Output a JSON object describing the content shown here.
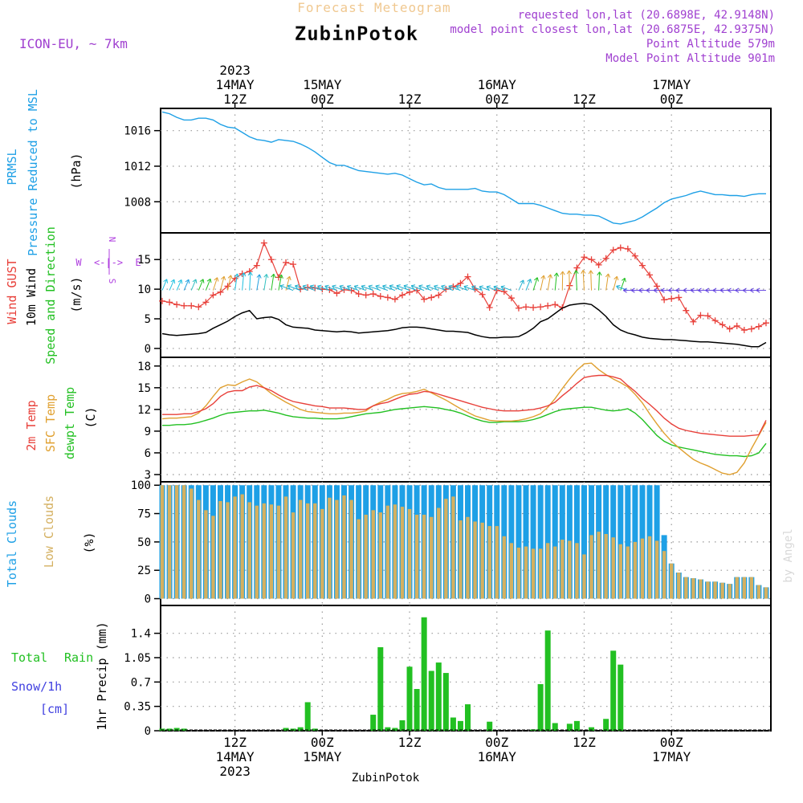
{
  "header": {
    "title": "Forecast Meteogram",
    "location": "ZubinPotok",
    "model": "ICON-EU, ~ 7km",
    "requested": "requested lon,lat (20.6898E, 42.9148N)",
    "closest": "model point closest lon,lat (20.6875E, 42.9375N)",
    "point_alt": "Point Altitude 579m",
    "model_alt": "Model Point Altitude 901m",
    "footer_location": "ZubinPotok",
    "credit": "by Angel"
  },
  "colors": {
    "pressure": "#1ea0e6",
    "gust": "#e8403a",
    "wind": "#000000",
    "arrows": "#22c022",
    "t2m": "#e8403a",
    "tsfc": "#e0a030",
    "dewpt": "#22c022",
    "total_clouds": "#1ea0e6",
    "low_clouds": "#d4b060",
    "rain": "#22c022",
    "snow": "#4040e0",
    "compass": "#b040e0",
    "header_title": "#f0c890",
    "header_info": "#a040d0"
  },
  "chart_data": [
    {
      "type": "line",
      "name": "pressure",
      "title": "PRMSL Pressure Reduced to MSL",
      "ylabel_lines": [
        "PRMSL",
        "Pressure Reduced to MSL"
      ],
      "unit": "(hPa)",
      "hours": [
        0,
        24
      ],
      "ylim": [
        1004.5,
        1018.5
      ],
      "yticks": [
        1008,
        1012,
        1016
      ],
      "series": [
        {
          "name": "PRMSL",
          "values": [
            1018.1,
            1017.9,
            1017.5,
            1017.2,
            1017.2,
            1017.4,
            1017.4,
            1017.2,
            1016.7,
            1016.4,
            1016.3,
            1015.8,
            1015.3,
            1015.0,
            1014.9,
            1014.7,
            1015.0,
            1014.9,
            1014.8,
            1014.5,
            1014.1,
            1013.6,
            1013.0,
            1012.4,
            1012.1,
            1012.1,
            1011.8,
            1011.5,
            1011.4,
            1011.3,
            1011.2,
            1011.1,
            1011.2,
            1011.0,
            1010.6,
            1010.2,
            1009.9,
            1010.0,
            1009.6,
            1009.4,
            1009.4,
            1009.4,
            1009.4,
            1009.5,
            1009.2,
            1009.1,
            1009.1,
            1008.8,
            1008.3,
            1007.8,
            1007.8,
            1007.8,
            1007.6,
            1007.3,
            1007.0,
            1006.7,
            1006.6,
            1006.6,
            1006.5,
            1006.5,
            1006.4,
            1006.0,
            1005.6,
            1005.5,
            1005.7,
            1005.9,
            1006.3,
            1006.8,
            1007.3,
            1007.9,
            1008.3,
            1008.5,
            1008.7,
            1009.0,
            1009.2,
            1009.0,
            1008.8,
            1008.8,
            1008.7,
            1008.7,
            1008.6,
            1008.8,
            1008.9,
            1008.9
          ]
        }
      ]
    },
    {
      "type": "line",
      "name": "wind",
      "ylabel_lines": [
        "Wind GUST",
        "10m Wind",
        "Speed and Direction"
      ],
      "unit": "(m/s)",
      "ylim": [
        -1.5,
        19.5
      ],
      "yticks": [
        0,
        5,
        10,
        15
      ],
      "compass": {
        "n": "N",
        "s": "S",
        "e": "E",
        "w": "W",
        "arrow": "<-|->"
      },
      "series": [
        {
          "name": "Wind GUST",
          "values": [
            8.0,
            7.8,
            7.4,
            7.2,
            7.2,
            7.0,
            7.8,
            9.0,
            9.5,
            10.5,
            11.8,
            12.6,
            13.0,
            14.0,
            17.8,
            15.0,
            12.0,
            14.5,
            14.2,
            10.0,
            10.3,
            10.2,
            10.0,
            9.9,
            9.3,
            9.9,
            9.8,
            9.2,
            9.0,
            9.2,
            8.8,
            8.6,
            8.3,
            9.0,
            9.5,
            9.8,
            8.3,
            8.6,
            9.0,
            10.0,
            10.4,
            11.0,
            12.1,
            10.0,
            9.1,
            6.9,
            9.8,
            9.6,
            8.5,
            6.8,
            7.0,
            6.9,
            7.0,
            7.2,
            7.4,
            6.9,
            10.6,
            13.6,
            15.4,
            15.0,
            14.1,
            15.2,
            16.6,
            17.0,
            16.8,
            15.6,
            14.0,
            12.4,
            10.5,
            8.2,
            8.4,
            8.6,
            6.4,
            4.5,
            5.6,
            5.5,
            4.7,
            4.0,
            3.3,
            3.8,
            3.1,
            3.3,
            3.7,
            4.3
          ]
        },
        {
          "name": "10m Wind",
          "values": [
            2.5,
            2.3,
            2.2,
            2.3,
            2.4,
            2.5,
            2.7,
            3.4,
            4.0,
            4.6,
            5.4,
            6.0,
            6.4,
            5.0,
            5.2,
            5.3,
            4.9,
            4.0,
            3.6,
            3.5,
            3.4,
            3.1,
            3.0,
            2.9,
            2.8,
            2.9,
            2.8,
            2.6,
            2.7,
            2.8,
            2.9,
            3.0,
            3.2,
            3.5,
            3.6,
            3.6,
            3.5,
            3.3,
            3.1,
            2.9,
            2.9,
            2.8,
            2.7,
            2.3,
            2.0,
            1.8,
            1.8,
            1.9,
            1.9,
            2.0,
            2.6,
            3.4,
            4.5,
            5.0,
            5.9,
            6.8,
            7.3,
            7.5,
            7.6,
            7.4,
            6.5,
            5.4,
            4.0,
            3.1,
            2.6,
            2.3,
            1.9,
            1.7,
            1.6,
            1.5,
            1.5,
            1.4,
            1.3,
            1.2,
            1.1,
            1.1,
            1.0,
            0.9,
            0.8,
            0.7,
            0.5,
            0.3,
            0.3,
            1.0
          ]
        }
      ]
    },
    {
      "type": "line",
      "name": "temperature",
      "ylabel_lines": [
        "2m Temp",
        "SFC Temp",
        "dewpt Temp"
      ],
      "unit": "(C)",
      "ylim": [
        2,
        19.2
      ],
      "yticks": [
        3,
        6,
        9,
        12,
        15,
        18
      ],
      "series": [
        {
          "name": "2m Temp",
          "values": [
            11.3,
            11.3,
            11.3,
            11.4,
            11.4,
            11.7,
            12.1,
            12.8,
            13.8,
            14.4,
            14.6,
            14.6,
            15.1,
            15.3,
            15.0,
            14.6,
            14.0,
            13.5,
            13.1,
            12.9,
            12.7,
            12.5,
            12.4,
            12.2,
            12.2,
            12.2,
            12.1,
            12.0,
            12.0,
            12.5,
            12.8,
            13.0,
            13.4,
            13.8,
            14.1,
            14.2,
            14.5,
            14.4,
            14.1,
            13.8,
            13.5,
            13.2,
            12.9,
            12.6,
            12.3,
            12.1,
            11.9,
            11.8,
            11.8,
            11.8,
            11.9,
            12.0,
            12.2,
            12.5,
            13.0,
            13.9,
            14.7,
            15.6,
            16.4,
            16.6,
            16.7,
            16.7,
            16.5,
            16.2,
            15.3,
            14.5,
            13.5,
            12.7,
            11.8,
            10.8,
            10.0,
            9.4,
            9.1,
            8.9,
            8.7,
            8.6,
            8.5,
            8.4,
            8.3,
            8.3,
            8.3,
            8.4,
            8.5,
            10.5
          ]
        },
        {
          "name": "SFC Temp",
          "values": [
            10.7,
            10.8,
            10.8,
            10.9,
            11.0,
            11.5,
            12.5,
            13.8,
            15.0,
            15.4,
            15.3,
            15.8,
            16.2,
            15.8,
            15.0,
            14.2,
            13.6,
            13.0,
            12.5,
            12.0,
            11.7,
            11.6,
            11.5,
            11.4,
            11.4,
            11.5,
            11.5,
            11.6,
            11.8,
            12.5,
            13.0,
            13.4,
            13.9,
            14.2,
            14.3,
            14.5,
            14.8,
            14.3,
            13.8,
            13.3,
            12.7,
            12.1,
            11.6,
            11.1,
            10.8,
            10.5,
            10.4,
            10.4,
            10.4,
            10.5,
            10.7,
            11.0,
            11.4,
            12.3,
            13.5,
            14.9,
            16.2,
            17.4,
            18.3,
            18.4,
            17.5,
            16.8,
            16.2,
            15.7,
            15.1,
            14.1,
            12.9,
            11.4,
            10.0,
            8.7,
            7.6,
            6.7,
            5.9,
            5.1,
            4.6,
            4.2,
            3.7,
            3.2,
            3.0,
            3.3,
            4.6,
            6.6,
            8.4,
            10.2
          ]
        },
        {
          "name": "dewpt Temp",
          "values": [
            9.8,
            9.8,
            9.9,
            9.9,
            10.0,
            10.2,
            10.5,
            10.8,
            11.2,
            11.5,
            11.6,
            11.7,
            11.8,
            11.8,
            11.9,
            11.7,
            11.5,
            11.2,
            11.0,
            10.9,
            10.8,
            10.8,
            10.7,
            10.7,
            10.7,
            10.8,
            11.0,
            11.2,
            11.4,
            11.5,
            11.6,
            11.8,
            12.0,
            12.1,
            12.2,
            12.3,
            12.4,
            12.3,
            12.2,
            12.0,
            11.8,
            11.5,
            11.1,
            10.7,
            10.4,
            10.2,
            10.2,
            10.3,
            10.3,
            10.3,
            10.4,
            10.6,
            10.9,
            11.3,
            11.7,
            12.0,
            12.1,
            12.2,
            12.3,
            12.3,
            12.1,
            11.9,
            11.8,
            11.9,
            12.1,
            11.5,
            10.6,
            9.5,
            8.4,
            7.6,
            7.1,
            6.8,
            6.6,
            6.4,
            6.2,
            6.0,
            5.8,
            5.7,
            5.6,
            5.6,
            5.5,
            5.6,
            6.0,
            7.3
          ]
        }
      ]
    },
    {
      "type": "bar",
      "name": "clouds",
      "ylabel_lines": [
        "Total Clouds",
        "Low Clouds"
      ],
      "unit": "(%)",
      "ylim": [
        -6,
        103
      ],
      "yticks": [
        0,
        25,
        50,
        75,
        100
      ],
      "series": [
        {
          "name": "Total Clouds",
          "values": [
            100,
            100,
            100,
            100,
            100,
            100,
            100,
            100,
            100,
            100,
            100,
            100,
            100,
            100,
            100,
            100,
            100,
            100,
            100,
            100,
            100,
            100,
            100,
            100,
            100,
            100,
            100,
            100,
            100,
            100,
            100,
            100,
            100,
            100,
            100,
            100,
            100,
            100,
            100,
            100,
            100,
            100,
            100,
            100,
            100,
            100,
            100,
            100,
            100,
            100,
            100,
            100,
            100,
            100,
            100,
            100,
            100,
            100,
            100,
            100,
            100,
            100,
            100,
            100,
            100,
            100,
            100,
            100,
            100,
            56,
            31,
            23,
            19,
            18,
            17,
            15,
            15,
            14,
            13,
            19,
            19,
            19,
            12,
            10
          ]
        },
        {
          "name": "Low Clouds",
          "values": [
            100,
            100,
            100,
            100,
            97,
            87,
            78,
            73,
            86,
            85,
            90,
            92,
            85,
            82,
            84,
            83,
            82,
            90,
            76,
            87,
            84,
            84,
            79,
            89,
            87,
            91,
            87,
            70,
            74,
            78,
            76,
            82,
            83,
            81,
            79,
            74,
            74,
            72,
            80,
            88,
            90,
            69,
            72,
            68,
            67,
            64,
            64,
            55,
            49,
            45,
            46,
            44,
            44,
            49,
            46,
            52,
            51,
            49,
            39,
            56,
            59,
            57,
            54,
            48,
            46,
            50,
            53,
            55,
            51,
            42,
            31,
            23,
            19,
            18,
            17,
            15,
            15,
            14,
            13,
            19,
            19,
            19,
            12,
            10
          ]
        }
      ]
    },
    {
      "type": "bar",
      "name": "precip",
      "ylabel_lines": [
        "Total",
        "Rain",
        "Snow/1h",
        "[cm]"
      ],
      "ylabel_text": "1hr Precip (mm)",
      "ylim": [
        0,
        1.8
      ],
      "yticks": [
        0,
        0.35,
        0.7,
        1.05,
        1.4
      ],
      "yticklabels": [
        "0",
        "0.35",
        "0.7",
        "1.05",
        "1.4"
      ],
      "series": [
        {
          "name": "Total Rain",
          "values": [
            0.03,
            0.03,
            0.04,
            0.03,
            0,
            0,
            0,
            0,
            0,
            0,
            0,
            0,
            0,
            0,
            0,
            0,
            0,
            0.04,
            0.03,
            0.05,
            0.41,
            0.03,
            0,
            0,
            0,
            0,
            0,
            0,
            0,
            0.23,
            1.2,
            0.05,
            0.04,
            0.15,
            0.92,
            0.6,
            1.63,
            0.86,
            0.98,
            0.83,
            0.19,
            0.14,
            0.38,
            0,
            0,
            0.13,
            0,
            0,
            0,
            0,
            0,
            0.02,
            0.67,
            1.44,
            0.11,
            0,
            0.1,
            0.14,
            0,
            0.05,
            0,
            0.17,
            1.15,
            0.95,
            0,
            0,
            0,
            0,
            0,
            0,
            0,
            0,
            0,
            0,
            0,
            0,
            0,
            0,
            0,
            0,
            0,
            0,
            0,
            0
          ]
        }
      ]
    }
  ],
  "time_axis": {
    "top": [
      {
        "hour": 10,
        "lines": [
          "2023",
          "14MAY",
          "12Z"
        ]
      },
      {
        "hour": 22,
        "lines": [
          "15MAY",
          "00Z"
        ]
      },
      {
        "hour": 34,
        "lines": [
          "12Z"
        ]
      },
      {
        "hour": 46,
        "lines": [
          "16MAY",
          "00Z"
        ]
      },
      {
        "hour": 58,
        "lines": [
          "12Z"
        ]
      },
      {
        "hour": 70,
        "lines": [
          "17MAY",
          "00Z"
        ]
      }
    ],
    "bottom": [
      {
        "hour": 10,
        "lines": [
          "12Z",
          "14MAY",
          "2023"
        ]
      },
      {
        "hour": 22,
        "lines": [
          "00Z",
          "15MAY"
        ]
      },
      {
        "hour": 34,
        "lines": [
          "12Z"
        ]
      },
      {
        "hour": 46,
        "lines": [
          "00Z",
          "16MAY"
        ]
      },
      {
        "hour": 58,
        "lines": [
          "12Z"
        ]
      },
      {
        "hour": 70,
        "lines": [
          "00Z",
          "17MAY"
        ]
      }
    ]
  }
}
